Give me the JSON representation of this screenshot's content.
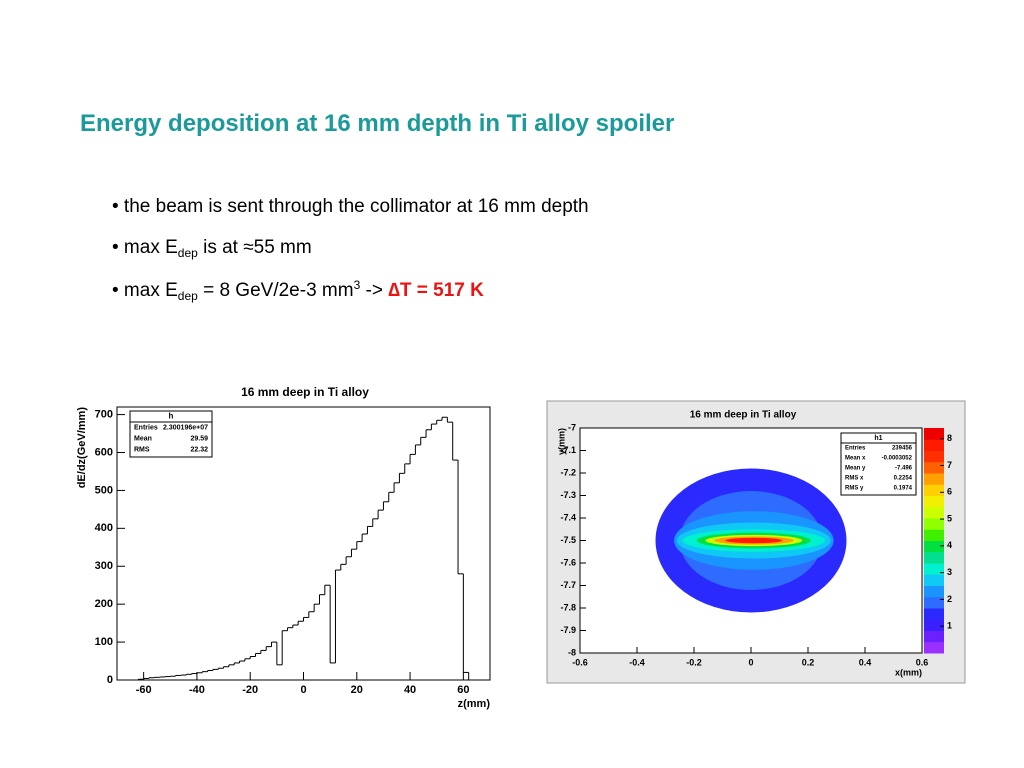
{
  "slide": {
    "title": "Energy deposition at 16 mm depth in Ti alloy spoiler",
    "bullets": [
      [
        {
          "text": "• the beam is sent through the collimator at 16 mm depth",
          "style": "normal"
        }
      ],
      [
        {
          "text": "• max E",
          "style": "normal"
        },
        {
          "text": "dep",
          "style": "sub"
        },
        {
          "text": " is at ≈55 mm",
          "style": "normal"
        }
      ],
      [
        {
          "text": "• max E",
          "style": "normal"
        },
        {
          "text": "dep",
          "style": "sub"
        },
        {
          "text": " = 8 GeV/2e-3 mm",
          "style": "normal"
        },
        {
          "text": "3",
          "style": "sup"
        },
        {
          "text": " -> ",
          "style": "normal"
        },
        {
          "text": "∆T = 517 K",
          "style": "red"
        }
      ]
    ]
  },
  "chart_data": [
    {
      "type": "histogram",
      "title": "16 mm deep in Ti alloy",
      "x_label": "z(mm)",
      "y_label": "dE/dz(GeV/mm)",
      "bins": [
        -64,
        -62,
        -60,
        -58,
        -56,
        -54,
        -52,
        -50,
        -48,
        -46,
        -44,
        -42,
        -40,
        -38,
        -36,
        -34,
        -32,
        -30,
        -28,
        -26,
        -24,
        -22,
        -20,
        -18,
        -16,
        -14,
        -12,
        -10,
        -8,
        -6,
        -4,
        -2,
        0,
        2,
        4,
        6,
        8,
        10,
        12,
        14,
        16,
        18,
        20,
        22,
        24,
        26,
        28,
        30,
        32,
        34,
        36,
        38,
        40,
        42,
        44,
        46,
        48,
        50,
        52,
        54,
        56,
        58,
        60,
        62
      ],
      "values": [
        0,
        2,
        4,
        6,
        7,
        8,
        9,
        10,
        12,
        13,
        15,
        17,
        19,
        22,
        25,
        28,
        31,
        35,
        40,
        45,
        50,
        56,
        62,
        70,
        78,
        88,
        100,
        40,
        130,
        138,
        145,
        155,
        165,
        180,
        200,
        225,
        250,
        45,
        290,
        305,
        325,
        345,
        365,
        385,
        405,
        425,
        448,
        470,
        495,
        520,
        545,
        570,
        595,
        620,
        640,
        660,
        675,
        685,
        693,
        680,
        580,
        280,
        20
      ],
      "color": "#000000",
      "xlim": [
        -70,
        70
      ],
      "ylim": [
        0,
        720
      ],
      "xticks": [
        -60,
        -40,
        -20,
        0,
        20,
        40,
        60
      ],
      "yticks": [
        0,
        100,
        200,
        300,
        400,
        500,
        600,
        700
      ],
      "stats": {
        "title": "h",
        "rows": [
          [
            "Entries",
            "2.300196e+07"
          ],
          [
            "Mean",
            "29.59"
          ],
          [
            "RMS",
            "22.32"
          ]
        ]
      }
    },
    {
      "type": "contour",
      "title": "16 mm deep in Ti alloy",
      "x_label": "x(mm)",
      "y_label": "y(mm)",
      "contours": [
        {
          "level": 1,
          "cx": 0,
          "cy": -7.5,
          "rx": 0.335,
          "ry": 0.32,
          "color": "#2a2aff"
        },
        {
          "level": 1.5,
          "cx": 0,
          "cy": -7.5,
          "rx": 0.25,
          "ry": 0.22,
          "color": "#2e6bff"
        },
        {
          "level": 2,
          "cx": 0.01,
          "cy": -7.5,
          "rx": 0.28,
          "ry": 0.13,
          "color": "#1a95ff"
        },
        {
          "level": 2.5,
          "cx": 0.01,
          "cy": -7.5,
          "rx": 0.27,
          "ry": 0.08,
          "color": "#10c8f5"
        },
        {
          "level": 3,
          "cx": 0.01,
          "cy": -7.5,
          "rx": 0.25,
          "ry": 0.05,
          "color": "#00f0d0"
        },
        {
          "level": 4,
          "cx": 0.01,
          "cy": -7.5,
          "rx": 0.2,
          "ry": 0.035,
          "color": "#00e040"
        },
        {
          "level": 5,
          "cx": 0.01,
          "cy": -7.5,
          "rx": 0.17,
          "ry": 0.025,
          "color": "#ccff00"
        },
        {
          "level": 6,
          "cx": 0.01,
          "cy": -7.5,
          "rx": 0.14,
          "ry": 0.018,
          "color": "#ffa000"
        },
        {
          "level": 8,
          "cx": 0.01,
          "cy": -7.5,
          "rx": 0.1,
          "ry": 0.012,
          "color": "#ff1a00"
        }
      ],
      "xlim": [
        -0.6,
        0.6
      ],
      "ylim": [
        -8,
        -7
      ],
      "xticks": [
        -0.6,
        -0.4,
        -0.2,
        0,
        0.2,
        0.4,
        0.6
      ],
      "yticks": [
        -8,
        -7.9,
        -7.8,
        -7.7,
        -7.6,
        -7.5,
        -7.4,
        -7.3,
        -7.2,
        -7.1,
        -7
      ],
      "zlim": [
        0,
        8.4
      ],
      "zticks": [
        1,
        2,
        3,
        4,
        5,
        6,
        7,
        8
      ],
      "palette": [
        "#9a30ff",
        "#6a20ff",
        "#3a20ff",
        "#2a2aff",
        "#2e6bff",
        "#1a95ff",
        "#10c8f5",
        "#00f0d0",
        "#00e090",
        "#00e040",
        "#40f000",
        "#90ff00",
        "#ccff00",
        "#f0f000",
        "#ffd000",
        "#ffa000",
        "#ff6000",
        "#ff3000",
        "#ff1a00",
        "#ee0000"
      ],
      "stats": {
        "title": "h1",
        "rows": [
          [
            "Entries",
            "239456"
          ],
          [
            "Mean x",
            "-0.0003052"
          ],
          [
            "Mean y",
            "-7.496"
          ],
          [
            "RMS x",
            "0.2254"
          ],
          [
            "RMS y",
            "0.1974"
          ]
        ]
      }
    }
  ]
}
